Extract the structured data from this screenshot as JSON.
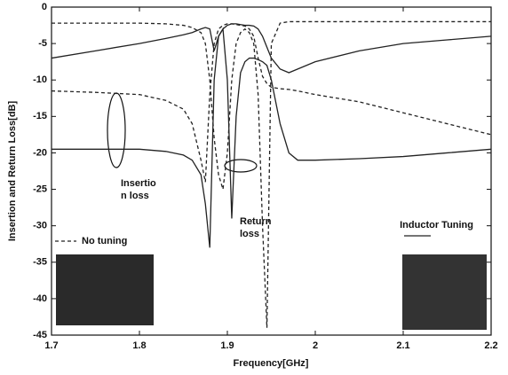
{
  "chart_data": {
    "type": "line",
    "xlabel": "Frequency[GHz]",
    "ylabel": "Insertion and Return Loss[dB]",
    "x": [
      1.7,
      1.75,
      1.8,
      1.83,
      1.85,
      1.86,
      1.87,
      1.875,
      1.88,
      1.885,
      1.89,
      1.895,
      1.9,
      1.905,
      1.91,
      1.915,
      1.92,
      1.925,
      1.93,
      1.935,
      1.94,
      1.945,
      1.95,
      1.96,
      1.97,
      1.98,
      2.0,
      2.05,
      2.1,
      2.15,
      2.2
    ],
    "series": [
      {
        "name": "No tuning",
        "color": "#222222",
        "dashed": true,
        "curves": [
          {
            "values": [
              -11.5,
              -11.7,
              -12,
              -12.8,
              -14,
              -16,
              -21,
              -24,
              -12,
              -5,
              -3,
              -2.5,
              -2.3,
              -2.3,
              -2.4,
              -2.5,
              -2.6,
              -3,
              -4,
              -7,
              -9.5,
              -10.5,
              -11,
              -11.2,
              -11.3,
              -11.5,
              -12,
              -13,
              -14.5,
              -16,
              -17.5
            ]
          },
          {
            "values": [
              -2.2,
              -2.2,
              -2.2,
              -2.3,
              -2.5,
              -2.8,
              -3.5,
              -5,
              -10,
              -18,
              -23,
              -25,
              -20,
              -10,
              -5,
              -3.5,
              -3,
              -3.5,
              -5,
              -12,
              -30,
              -44,
              -5,
              -2.2,
              -2,
              -2,
              -2,
              -2,
              -2,
              -2,
              -2
            ]
          }
        ]
      },
      {
        "name": "Inductor Tuning",
        "color": "#222222",
        "dashed": false,
        "curves": [
          {
            "values": [
              -7,
              -6,
              -5,
              -4.3,
              -3.8,
              -3.5,
              -3,
              -2.8,
              -3,
              -6,
              -4,
              -3,
              -2.5,
              -2.3,
              -2.3,
              -2.4,
              -2.5,
              -2.5,
              -2.6,
              -3,
              -4,
              -5.5,
              -7,
              -8.5,
              -9,
              -8.5,
              -7.5,
              -6,
              -5,
              -4.5,
              -4
            ]
          },
          {
            "values": [
              -19.5,
              -19.5,
              -19.5,
              -19.8,
              -20.3,
              -21,
              -23,
              -27,
              -33,
              -10,
              -4,
              -3,
              -10,
              -29,
              -15,
              -9,
              -7.5,
              -7,
              -7,
              -7.2,
              -7.5,
              -8,
              -10,
              -16,
              -20,
              -21,
              -21,
              -20.8,
              -20.5,
              -20,
              -19.5
            ]
          }
        ]
      }
    ],
    "annotations": [
      {
        "lines": [
          "Insertio",
          "n loss"
        ]
      },
      {
        "lines": [
          "Return",
          "loss"
        ]
      }
    ],
    "xlim": [
      1.7,
      2.2
    ],
    "xticks": [
      1.7,
      1.8,
      1.9,
      2,
      2.1,
      2.2
    ],
    "ylim": [
      -45,
      0
    ],
    "yticks": [
      0,
      -5,
      -10,
      -15,
      -20,
      -25,
      -30,
      -35,
      -40,
      -45
    ],
    "grid": false
  }
}
